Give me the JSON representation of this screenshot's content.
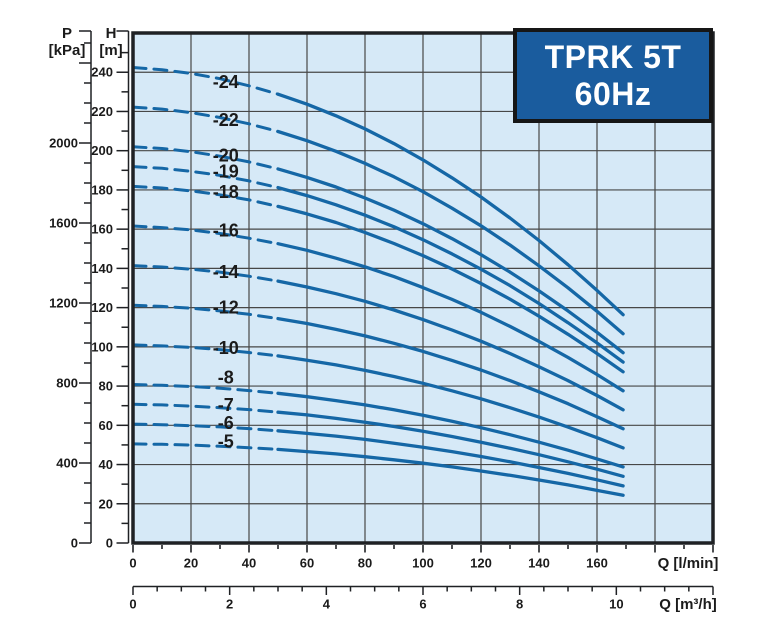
{
  "title_box": {
    "line1": "TPRK 5T",
    "line2": "60Hz",
    "bg_color": "#1a5c9e",
    "text_color": "#ffffff"
  },
  "chart_data": {
    "type": "line",
    "title": "TPRK 5T 60Hz pump performance curves",
    "plot_bg": "#d6e9f7",
    "curve_color": "#1567a6",
    "grid_color": "#474747",
    "frame_color": "#1f2124",
    "text_color": "#1b1b1b",
    "grid": {
      "x_step_lmin": 20,
      "y_step_m": 20,
      "visible": true
    },
    "x_axis_primary": {
      "label": "Q [l/min]",
      "tick_labels": [
        0,
        20,
        40,
        60,
        80,
        100,
        120,
        140,
        160
      ],
      "major_step": 20,
      "minor_step": 10,
      "range": [
        0,
        200
      ]
    },
    "x_axis_secondary": {
      "label": "Q [m³/h]",
      "tick_labels": [
        0,
        2,
        4,
        6,
        8,
        10
      ],
      "major_step": 2,
      "minor_step": 0.5,
      "range": [
        0,
        12
      ]
    },
    "y_axis_primary": {
      "title": "H",
      "unit": "[m]",
      "tick_labels": [
        0,
        20,
        40,
        60,
        80,
        100,
        120,
        140,
        160,
        180,
        200,
        220,
        240
      ],
      "major_step": 20,
      "minor_step": 10,
      "range": [
        0,
        260
      ]
    },
    "y_axis_secondary": {
      "title": "P",
      "unit": "[kPa]",
      "tick_labels": [
        0,
        400,
        800,
        1200,
        1600,
        2000
      ],
      "major_step": 400,
      "minor_step": 100,
      "range": [
        0,
        2500
      ]
    },
    "q_lmin": [
      0,
      10,
      20,
      30,
      40,
      50,
      60,
      70,
      80,
      90,
      100,
      110,
      120,
      130,
      140,
      150,
      160,
      169
    ],
    "dashed_below_q_lmin": 50,
    "q_end_lmin": 169,
    "curve_label_q_lmin": 32,
    "series": [
      {
        "label": "-24",
        "stages": 24,
        "label_dy": 2,
        "head_m": [
          242.4,
          241.3,
          239.4,
          236.7,
          233.1,
          228.8,
          223.7,
          217.8,
          211.1,
          203.6,
          195.3,
          186.2,
          176.4,
          165.7,
          154.2,
          141.9,
          128.8,
          116.4
        ]
      },
      {
        "label": "-22",
        "stages": 22,
        "label_dy": 1,
        "head_m": [
          222.2,
          221.2,
          219.4,
          216.9,
          213.7,
          209.8,
          205.1,
          199.7,
          193.5,
          186.7,
          179.1,
          170.7,
          161.7,
          151.9,
          141.3,
          130.1,
          118.1,
          106.7
        ]
      },
      {
        "label": "-20",
        "stages": 20,
        "label_dy": -2,
        "head_m": [
          202.0,
          201.1,
          199.5,
          197.2,
          194.3,
          190.7,
          186.4,
          181.5,
          175.9,
          169.7,
          162.8,
          155.2,
          147.0,
          138.1,
          128.5,
          118.3,
          107.4,
          97.0
        ]
      },
      {
        "label": "-19",
        "stages": 19,
        "label_dy": -5,
        "head_m": [
          191.9,
          191.0,
          189.5,
          187.4,
          184.6,
          181.2,
          177.1,
          172.4,
          167.1,
          161.2,
          154.6,
          147.4,
          139.6,
          131.2,
          122.1,
          112.3,
          102.0,
          92.2
        ]
      },
      {
        "label": "-18",
        "stages": 18,
        "label_dy": -4,
        "head_m": [
          181.8,
          181.0,
          179.5,
          177.5,
          174.9,
          171.6,
          167.8,
          163.4,
          158.3,
          152.7,
          146.5,
          139.7,
          132.3,
          124.3,
          115.6,
          106.4,
          96.6,
          87.3
        ]
      },
      {
        "label": "-16",
        "stages": 16,
        "label_dy": -4,
        "head_m": [
          161.6,
          160.8,
          159.6,
          157.8,
          155.4,
          152.6,
          149.2,
          145.2,
          140.8,
          135.8,
          130.2,
          124.2,
          117.6,
          110.4,
          102.8,
          94.6,
          85.9,
          77.6
        ]
      },
      {
        "label": "-14",
        "stages": 14,
        "label_dy": -1,
        "head_m": [
          141.4,
          140.7,
          139.6,
          138.1,
          136.0,
          133.5,
          130.5,
          127.1,
          123.2,
          118.8,
          113.9,
          108.6,
          102.9,
          96.6,
          89.9,
          82.8,
          75.2,
          67.9
        ]
      },
      {
        "label": "-12",
        "stages": 12,
        "label_dy": -4,
        "head_m": [
          121.2,
          120.6,
          119.7,
          118.3,
          116.6,
          114.4,
          111.9,
          108.9,
          105.6,
          101.8,
          97.7,
          93.1,
          88.2,
          82.8,
          77.1,
          71.0,
          64.4,
          58.2
        ]
      },
      {
        "label": "-10",
        "stages": 10,
        "label_dy": -2,
        "head_m": [
          101.0,
          100.5,
          99.7,
          98.6,
          97.1,
          95.4,
          93.2,
          90.8,
          88.0,
          84.9,
          81.4,
          77.6,
          73.5,
          69.0,
          64.2,
          59.1,
          53.7,
          48.5
        ]
      },
      {
        "label": "-8",
        "stages": 8,
        "label_dy": -11,
        "head_m": [
          80.8,
          80.4,
          79.8,
          78.9,
          77.7,
          76.3,
          74.6,
          72.6,
          70.4,
          67.9,
          65.1,
          62.1,
          58.8,
          55.2,
          51.4,
          47.3,
          42.9,
          38.8
        ]
      },
      {
        "label": "-7",
        "stages": 7,
        "label_dy": -3,
        "head_m": [
          70.7,
          70.4,
          69.8,
          69.0,
          68.0,
          66.7,
          65.3,
          63.5,
          61.6,
          59.4,
          57.0,
          54.3,
          51.4,
          48.3,
          45.0,
          41.4,
          37.6,
          34.0
        ]
      },
      {
        "label": "-6",
        "stages": 6,
        "label_dy": -4,
        "head_m": [
          60.6,
          60.3,
          59.8,
          59.2,
          58.3,
          57.2,
          55.9,
          54.5,
          52.8,
          50.9,
          48.8,
          46.6,
          44.1,
          41.4,
          38.5,
          35.5,
          32.2,
          29.1
        ]
      },
      {
        "label": "-5",
        "stages": 5,
        "label_dy": -5,
        "head_m": [
          50.5,
          50.3,
          49.9,
          49.3,
          48.6,
          47.7,
          46.6,
          45.4,
          44.0,
          42.4,
          40.7,
          38.8,
          36.7,
          34.5,
          32.1,
          29.6,
          26.8,
          24.3
        ]
      }
    ]
  }
}
